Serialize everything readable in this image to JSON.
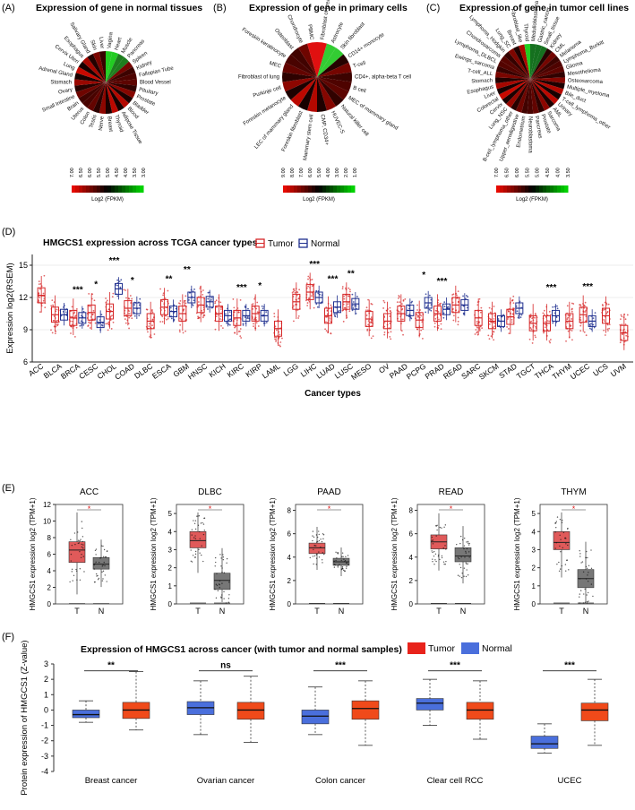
{
  "panels": {
    "A": {
      "label": "(A)",
      "title": "Expression of gene in normal tissues",
      "slices": [
        "Vagina",
        "Heart",
        "Muscle",
        "Pancreas",
        "Spleen",
        "Kidney",
        "Fallopian Tube",
        "Blood Vessel",
        "Pituitary",
        "Prostate",
        "Bladder",
        "Blood",
        "Adipose Tissue",
        "Thyroid",
        "Breast",
        "Nerve",
        "Testis",
        "Colon",
        "Uterus",
        "Brain",
        "Small Intestine",
        "Ovary",
        "Stomach",
        "Adrenal Gland",
        "Lung",
        "Cervix Uteri",
        "Esophagus",
        "Salivary Gland",
        "Skin",
        "Liver"
      ],
      "legend_ticks": [
        "7.00",
        "6.50",
        "6.00",
        "5.50",
        "5.00",
        "4.50",
        "4.00",
        "3.50",
        "3.00"
      ],
      "legend_label": "Log2 (FPKM)"
    },
    "B": {
      "label": "(B)",
      "title": "Expression of gene in primary cells",
      "slices": [
        "Fibroblast of breast",
        "Astrocyte",
        "Skin fibroblast",
        "CD14+ monocyte",
        "T-cell",
        "CD4+, alpha-beta T cell",
        "B cell",
        "MEC of mammary gland",
        "Natural killer cell",
        "HUVEC-S",
        "CMP, CD34+",
        "Mammary stem cell",
        "Foreskin fibroblast",
        "LEC of mammary gland",
        "Foreskin melanocyte",
        "Purkinje cell",
        "Fibroblast of lung",
        "MEC",
        "Foreskin keratinocyte",
        "Osteoblast",
        "Chondrocyte",
        "PBMC"
      ],
      "legend_ticks": [
        "9.00",
        "8.00",
        "7.00",
        "6.00",
        "5.00",
        "4.00",
        "3.00",
        "2.00",
        "1.00"
      ],
      "legend_label": "Log2 (FPKM)"
    },
    "C": {
      "label": "(C)",
      "title": "Expression of gene in tumor cell lines",
      "slices": [
        "Medulloblastoma",
        "Gastric_cancer",
        "Small_tissue",
        "Kidney",
        "CML",
        "Melanoma",
        "Lymphoma_Burkitt",
        "Glioma",
        "Mesothelioma",
        "Osteosarcoma",
        "Multiple_myeloma",
        "Bile_duct",
        "T-cell_lymphoma_other",
        "Urinary",
        "AML",
        "Sarcoma",
        "Prostate",
        "Pancreas",
        "Neuroblastoma",
        "Endometrium",
        "Upper_aerodigestive",
        "B-cell_lymphoma_other",
        "Lung_NSC",
        "Cervix",
        "Colorectal",
        "Liver",
        "Esophagus",
        "Stomach",
        "T-cell_ALL",
        "Ewings_sarcoma",
        "Lymphoma_DLBCL",
        "Chondrosarcoma",
        "Lymphoma_Hodgkin",
        "Lung_SC",
        "Breast",
        "Fibroblast_like",
        "Thyroid"
      ],
      "legend_ticks": [
        "7.00",
        "6.50",
        "6.00",
        "5.50",
        "5.00",
        "4.50",
        "4.00",
        "3.50"
      ],
      "legend_label": "Log2 (FPKM)"
    }
  },
  "panel_d": {
    "label": "(D)",
    "title": "HMGCS1 expression across TCGA cancer types",
    "legend_tumor": "Tumor",
    "legend_normal": "Normal"
  },
  "panel_e": {
    "label": "(E)"
  },
  "panel_f": {
    "label": "(F)",
    "title": "Expression of HMGCS1 across cancer (with tumor and normal samples)",
    "legend_tumor": "Tumor",
    "legend_normal": "Normal"
  },
  "chart_data": [
    {
      "type": "box",
      "id": "D",
      "title": "HMGCS1 expression across TCGA cancer types",
      "xlabel": "Cancer types",
      "ylabel": "Expression log2(RSEM)",
      "ylim": [
        6,
        16
      ],
      "yticks": [
        6,
        9,
        12,
        15
      ],
      "categories": [
        "ACC",
        "BLCA",
        "BRCA",
        "CESC",
        "CHOL",
        "COAD",
        "DLBC",
        "ESCA",
        "GBM",
        "HNSC",
        "KICH",
        "KIRC",
        "KIRP",
        "LAML",
        "LGG",
        "LIHC",
        "LUAD",
        "LUSC",
        "MESO",
        "OV",
        "PAAD",
        "PCPG",
        "PRAD",
        "READ",
        "SARC",
        "SKCM",
        "STAD",
        "TGCT",
        "THCA",
        "THYM",
        "UCEC",
        "UCS",
        "UVM"
      ],
      "tumor_median": [
        12.2,
        10.4,
        10.1,
        10.6,
        10.7,
        11.0,
        9.8,
        11.1,
        10.5,
        11.3,
        10.5,
        10.1,
        10.5,
        9.1,
        11.6,
        12.5,
        10.3,
        11.6,
        10.0,
        9.8,
        10.5,
        9.9,
        10.5,
        11.3,
        10.1,
        9.8,
        10.2,
        9.6,
        9.6,
        9.8,
        10.4,
        10.3,
        8.7
      ],
      "normal_median": [
        null,
        10.4,
        10.1,
        9.7,
        12.8,
        11.0,
        null,
        10.7,
        12.0,
        11.6,
        10.3,
        10.3,
        10.3,
        null,
        null,
        12.0,
        11.1,
        11.4,
        null,
        null,
        10.8,
        11.5,
        10.9,
        11.3,
        null,
        9.8,
        11.0,
        null,
        10.3,
        null,
        9.8,
        null,
        null
      ],
      "significance": [
        "",
        "",
        "***",
        "*",
        "***",
        "*",
        "",
        "**",
        "**",
        "",
        "",
        "***",
        "*",
        "",
        "",
        "***",
        "***",
        "**",
        "",
        "",
        "",
        "*",
        "***",
        "",
        "",
        "",
        "",
        "",
        "***",
        "",
        "***",
        "",
        ""
      ]
    },
    {
      "type": "box",
      "id": "E-ACC",
      "title": "ACC",
      "ylabel": "HMGCS1 expression log2 (TPM+1)",
      "categories": [
        "T",
        "N"
      ],
      "ylim": [
        0,
        12
      ],
      "yticks": [
        0,
        2,
        4,
        6,
        8,
        10,
        12
      ],
      "median": [
        6.5,
        4.8
      ],
      "q1": [
        5.0,
        4.2
      ],
      "q3": [
        7.5,
        5.6
      ],
      "significance": "*"
    },
    {
      "type": "box",
      "id": "E-DLBC",
      "title": "DLBC",
      "ylabel": "HMGCS1 expression log2 (TPM+1)",
      "categories": [
        "T",
        "N"
      ],
      "ylim": [
        0,
        5.5
      ],
      "yticks": [
        0,
        1,
        2,
        3,
        4,
        5
      ],
      "median": [
        3.5,
        1.3
      ],
      "q1": [
        3.1,
        0.8
      ],
      "q3": [
        4.0,
        1.7
      ],
      "significance": "*"
    },
    {
      "type": "box",
      "id": "E-PAAD",
      "title": "PAAD",
      "ylabel": "HMGCS1 expression log2 (TPM+1)",
      "categories": [
        "T",
        "N"
      ],
      "ylim": [
        0,
        8.5
      ],
      "yticks": [
        0,
        2,
        4,
        6,
        8
      ],
      "median": [
        4.8,
        3.6
      ],
      "q1": [
        4.3,
        3.3
      ],
      "q3": [
        5.2,
        3.9
      ],
      "significance": "*"
    },
    {
      "type": "box",
      "id": "E-READ",
      "title": "READ",
      "ylabel": "HMGCS1 expression log2 (TPM+1)",
      "categories": [
        "T",
        "N"
      ],
      "ylim": [
        0,
        8.5
      ],
      "yticks": [
        0,
        2,
        4,
        6,
        8
      ],
      "median": [
        5.3,
        4.1
      ],
      "q1": [
        4.7,
        3.6
      ],
      "q3": [
        5.9,
        4.8
      ],
      "significance": "*"
    },
    {
      "type": "box",
      "id": "E-THYM",
      "title": "THYM",
      "ylabel": "HMGCS1 expression log2 (TPM+1)",
      "categories": [
        "T",
        "N"
      ],
      "ylim": [
        0,
        5.5
      ],
      "yticks": [
        0,
        1,
        2,
        3,
        4,
        5
      ],
      "median": [
        3.4,
        1.4
      ],
      "q1": [
        3.0,
        0.9
      ],
      "q3": [
        4.0,
        1.9
      ],
      "significance": "*"
    },
    {
      "type": "box",
      "id": "F",
      "title": "Expression of HMGCS1 across cancer (with tumor and normal samples)",
      "ylabel": "Protein expression of HMGCS1 (Z-value)",
      "ylim": [
        -4,
        3
      ],
      "yticks": [
        -4,
        -3,
        -2,
        -1,
        0,
        1,
        2,
        3
      ],
      "categories": [
        "Breast cancer",
        "Ovarian cancer",
        "Colon cancer",
        "Clear cell RCC",
        "UCEC"
      ],
      "normal": {
        "min": [
          -0.8,
          -1.6,
          -1.6,
          -1.0,
          -2.8
        ],
        "q1": [
          -0.5,
          -0.3,
          -0.9,
          0.0,
          -2.5
        ],
        "median": [
          -0.3,
          0.15,
          -0.4,
          0.45,
          -2.2
        ],
        "q3": [
          0.0,
          0.55,
          0.0,
          0.75,
          -1.7
        ],
        "max": [
          0.6,
          1.9,
          1.5,
          2.0,
          -0.9
        ]
      },
      "tumor": {
        "min": [
          -1.3,
          -2.1,
          -2.3,
          -1.9,
          -2.3
        ],
        "q1": [
          -0.55,
          -0.6,
          -0.6,
          -0.6,
          -0.7
        ],
        "median": [
          0.0,
          0.0,
          0.1,
          0.0,
          0.0
        ],
        "q3": [
          0.5,
          0.5,
          0.6,
          0.5,
          0.45
        ],
        "max": [
          2.5,
          2.2,
          1.9,
          1.9,
          2.0
        ]
      },
      "significance": [
        "**",
        "ns",
        "***",
        "***",
        "***"
      ]
    }
  ]
}
